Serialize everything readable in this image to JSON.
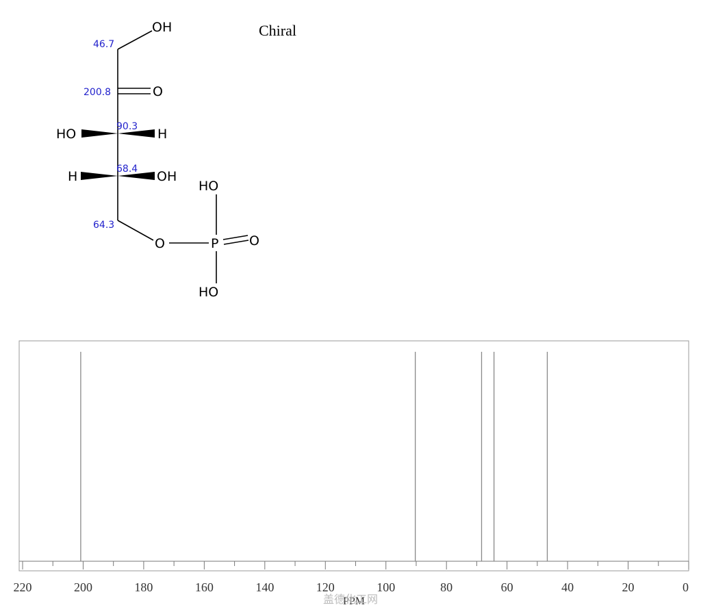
{
  "structure": {
    "chiral_label": "Chiral",
    "atoms": {
      "oh_top": "OH",
      "o_carbonyl": "O",
      "ho_c3": "HO",
      "h_c3": "H",
      "h_c4": "H",
      "oh_c4": "OH",
      "o_ester": "O",
      "p": "P",
      "o_p_double": "O",
      "ho_p_top": "HO",
      "ho_p_bottom": "HO"
    },
    "shift_labels": {
      "c1": "46.7",
      "c2": "200.8",
      "c3": "90.3",
      "c4": "68.4",
      "c5": "64.3"
    }
  },
  "chart_data": {
    "type": "stick",
    "xlabel": "PPM",
    "xlim": [
      220,
      0
    ],
    "ticks": [
      "220",
      "200",
      "180",
      "160",
      "140",
      "120",
      "100",
      "80",
      "60",
      "40",
      "20",
      "0"
    ],
    "peaks": [
      200.8,
      90.3,
      68.4,
      64.3,
      46.7
    ],
    "colors": {
      "peak": "#888888",
      "axis": "#777777"
    }
  },
  "watermark": "盖德化工网"
}
